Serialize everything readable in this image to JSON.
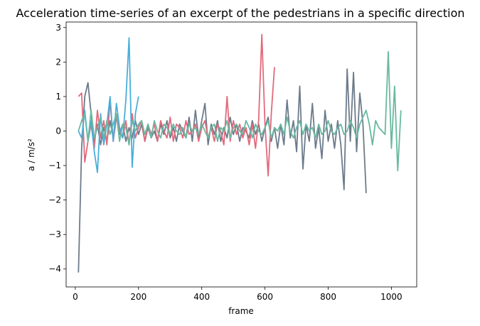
{
  "chart_data": {
    "type": "line",
    "title": "Acceleration time-series of an excerpt of the pedestrians in a specific direction",
    "xlabel": "frame",
    "ylabel": "a / m/s²",
    "xlim": [
      -29,
      1080
    ],
    "ylim": [
      -4.52,
      3.16
    ],
    "xticks": [
      0,
      200,
      400,
      600,
      800,
      1000
    ],
    "yticks": [
      {
        "value": -4,
        "label": "−4"
      },
      {
        "value": -3,
        "label": "−3"
      },
      {
        "value": -2,
        "label": "−2"
      },
      {
        "value": -1,
        "label": "−1"
      },
      0,
      1,
      2,
      3
    ],
    "grid": false,
    "series": [
      {
        "color": "#6c7b8b",
        "x": [
          10,
          20,
          30,
          40,
          50,
          60,
          70,
          80,
          90,
          100,
          110,
          120,
          130,
          140,
          150,
          160,
          170,
          180,
          190,
          200,
          210,
          220,
          230,
          240,
          250,
          260,
          270,
          280,
          290,
          300,
          310,
          320,
          330,
          340,
          350,
          360,
          370,
          380,
          390,
          400,
          410,
          420,
          430,
          440,
          450,
          460,
          470,
          480,
          490,
          500,
          510,
          520,
          530,
          540,
          550,
          560,
          570,
          580,
          590,
          600,
          610,
          620,
          630,
          640,
          650,
          660,
          670,
          680,
          690,
          700,
          710,
          720,
          730,
          740,
          750,
          760,
          770,
          780,
          790,
          800,
          810,
          820,
          830,
          840,
          850,
          860,
          870,
          880,
          890,
          900,
          910,
          920
        ],
        "values": [
          -4.1,
          -0.5,
          1.0,
          1.4,
          0.5,
          -0.3,
          0.2,
          -0.4,
          0.1,
          -0.3,
          0.3,
          -0.2,
          0.5,
          -0.1,
          0.2,
          -0.3,
          0.1,
          -0.2,
          0.3,
          -0.1,
          0.2,
          -0.3,
          0.1,
          -0.2,
          0.0,
          -0.3,
          0.2,
          -0.1,
          0.3,
          -0.2,
          0.1,
          -0.3,
          0.2,
          0.0,
          -0.2,
          0.4,
          -0.3,
          0.6,
          -0.2,
          0.3,
          0.8,
          -0.4,
          0.2,
          -0.1,
          0.3,
          -0.3,
          0.1,
          -0.2,
          0.4,
          -0.1,
          0.2,
          -0.3,
          0.1,
          0.0,
          -0.2,
          0.3,
          -0.1,
          0.2,
          -0.3,
          0.1,
          0.4,
          -0.3,
          0.1,
          -0.5,
          0.2,
          -0.4,
          0.9,
          -0.2,
          0.3,
          -0.6,
          1.3,
          -1.1,
          0.2,
          -0.3,
          0.8,
          -0.5,
          0.1,
          -0.8,
          0.6,
          -0.3,
          0.2,
          -0.5,
          0.3,
          -0.4,
          -1.7,
          1.8,
          -0.3,
          1.7,
          -0.6,
          1.1,
          0.2,
          -1.8
        ]
      },
      {
        "color": "#e26a7c",
        "x": [
          10,
          20,
          30,
          40,
          50,
          60,
          70,
          80,
          90,
          100,
          110,
          120,
          130,
          140,
          150,
          160,
          170,
          180,
          190,
          200,
          210,
          220,
          230,
          240,
          250,
          260,
          270,
          280,
          290,
          300,
          310,
          320,
          330,
          340,
          350,
          360,
          370,
          380,
          390,
          400,
          410,
          420,
          430,
          440,
          450,
          460,
          470,
          480,
          490,
          500,
          510,
          520,
          530,
          540,
          550,
          560,
          570,
          580,
          590,
          600,
          610,
          620,
          630
        ],
        "values": [
          1.0,
          1.1,
          -0.9,
          -0.3,
          0.2,
          -0.5,
          0.6,
          -0.2,
          0.3,
          -0.4,
          0.9,
          -0.3,
          0.4,
          0.0,
          -0.2,
          0.3,
          -0.4,
          0.5,
          -0.2,
          0.1,
          0.3,
          -0.3,
          0.2,
          -0.1,
          0.2,
          -0.3,
          0.3,
          0.0,
          -0.2,
          0.4,
          -0.3,
          0.2,
          0.1,
          -0.2,
          0.3,
          -0.1,
          0.0,
          0.2,
          -0.3,
          0.1,
          0.3,
          -0.2,
          0.1,
          -0.3,
          0.2,
          0.0,
          -0.4,
          1.0,
          -0.3,
          0.3,
          -0.1,
          0.2,
          -0.2,
          0.1,
          -0.4,
          0.2,
          -0.5,
          0.3,
          2.8,
          0.2,
          -1.3,
          0.5,
          1.85
        ]
      },
      {
        "color": "#4aaed9",
        "x": [
          10,
          20,
          30,
          40,
          50,
          60,
          70,
          80,
          90,
          100,
          110,
          120,
          130,
          140,
          150,
          160,
          170,
          180,
          190,
          200
        ],
        "values": [
          0.0,
          -0.2,
          0.6,
          -0.3,
          0.3,
          -0.6,
          -1.2,
          0.5,
          -0.4,
          0.2,
          1.0,
          -0.3,
          0.8,
          0.1,
          -0.2,
          0.9,
          2.7,
          -1.05,
          0.5,
          1.0
        ]
      },
      {
        "color": "#69b9a0",
        "x": [
          10,
          20,
          30,
          40,
          50,
          60,
          70,
          80,
          90,
          100,
          110,
          120,
          130,
          140,
          150,
          160,
          170,
          180,
          190,
          200,
          210,
          220,
          230,
          240,
          250,
          260,
          270,
          280,
          290,
          300,
          310,
          320,
          330,
          340,
          350,
          360,
          370,
          380,
          390,
          400,
          410,
          420,
          430,
          440,
          450,
          460,
          470,
          480,
          490,
          500,
          510,
          520,
          530,
          540,
          550,
          560,
          570,
          580,
          590,
          600,
          610,
          620,
          630,
          640,
          650,
          660,
          670,
          680,
          690,
          700,
          710,
          720,
          730,
          740,
          750,
          760,
          770,
          780,
          790,
          800,
          810,
          820,
          830,
          840,
          850,
          860,
          870,
          880,
          890,
          900,
          910,
          920,
          930,
          940,
          950,
          960,
          970,
          980,
          990,
          1000,
          1010,
          1020,
          1030
        ],
        "values": [
          0.0,
          0.3,
          0.5,
          -0.3,
          0.6,
          -0.2,
          0.1,
          0.4,
          -0.2,
          0.3,
          -0.1,
          0.2,
          0.5,
          -0.3,
          0.2,
          0.1,
          -0.4,
          0.3,
          0.0,
          0.2,
          0.3,
          -0.1,
          0.2,
          -0.2,
          0.3,
          0.0,
          -0.2,
          0.2,
          0.1,
          -0.1,
          0.2,
          0.0,
          -0.1,
          0.1,
          -0.2,
          0.2,
          0.0,
          0.1,
          -0.1,
          0.2,
          0.0,
          -0.2,
          0.1,
          0.2,
          -0.3,
          0.1,
          0.0,
          0.3,
          -0.2,
          0.1,
          0.2,
          0.0,
          -0.1,
          0.3,
          0.1,
          -0.2,
          0.2,
          0.0,
          -0.1,
          0.1,
          0.3,
          -0.2,
          0.1,
          0.0,
          0.2,
          -0.1,
          0.4,
          0.0,
          -0.2,
          0.1,
          0.3,
          -0.1,
          0.2,
          0.0,
          0.1,
          -0.2,
          0.2,
          -0.1,
          0.0,
          0.3,
          0.0,
          -0.1,
          0.1,
          0.2,
          -0.1,
          0.0,
          0.3,
          0.1,
          -0.2,
          0.2,
          0.4,
          0.6,
          0.2,
          -0.4,
          0.3,
          0.1,
          0.0,
          -0.1,
          2.3,
          -0.5,
          1.3,
          -1.15,
          0.6
        ]
      }
    ]
  }
}
